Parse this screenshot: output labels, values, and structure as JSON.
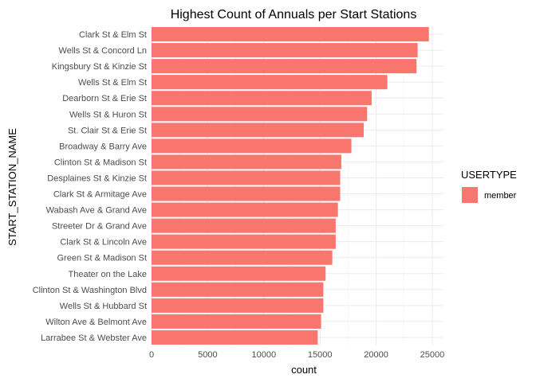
{
  "chart_data": {
    "type": "bar",
    "orientation": "horizontal",
    "title": "Highest Count of Annuals per Start Stations",
    "xlabel": "count",
    "ylabel": "START_STATION_NAME",
    "xlim": [
      0,
      26000
    ],
    "x_ticks": [
      0,
      5000,
      10000,
      15000,
      20000,
      25000
    ],
    "x_tick_labels": [
      "0",
      "5000",
      "10000",
      "15000",
      "20000",
      "25000"
    ],
    "grid": true,
    "categories": [
      "Clark St & Elm St",
      "Wells St & Concord Ln",
      "Kingsbury St & Kinzie St",
      "Wells St & Elm St",
      "Dearborn St & Erie St",
      "Wells St & Huron St",
      "St. Clair St & Erie St",
      "Broadway & Barry Ave",
      "Clinton St & Madison St",
      "Desplaines St & Kinzie St",
      "Clark St & Armitage Ave",
      "Wabash Ave & Grand Ave",
      "Streeter Dr & Grand Ave",
      "Clark St & Lincoln Ave",
      "Green St & Madison St",
      "Theater on the Lake",
      "Clinton St & Washington Blvd",
      "Wells St & Hubbard St",
      "Wilton Ave & Belmont Ave",
      "Larrabee St & Webster Ave"
    ],
    "series": [
      {
        "name": "member",
        "color": "#f8766d",
        "values": [
          24700,
          23700,
          23600,
          21000,
          19600,
          19200,
          18900,
          17800,
          16900,
          16800,
          16800,
          16600,
          16400,
          16400,
          16100,
          15500,
          15300,
          15300,
          15100,
          14800
        ]
      }
    ],
    "legend": {
      "title": "USERTYPE",
      "position": "right",
      "labels": [
        "member"
      ]
    }
  }
}
